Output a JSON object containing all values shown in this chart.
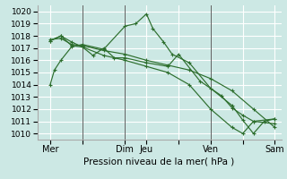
{
  "xlabel": "Pression niveau de la mer( hPa )",
  "background_color": "#cce8e4",
  "grid_color": "#ffffff",
  "line_color": "#2d6e2d",
  "ylim": [
    1009.5,
    1020.5
  ],
  "xlim": [
    -0.1,
    11.3
  ],
  "xtick_labels": [
    "Mer",
    "",
    "Dim",
    "Jeu",
    "",
    "Ven",
    "",
    "Sam"
  ],
  "xtick_positions": [
    0.5,
    2.0,
    4.0,
    5.0,
    6.5,
    8.0,
    9.5,
    11.0
  ],
  "lines": [
    {
      "x": [
        0.5,
        0.7,
        1.0,
        1.5,
        2.0,
        3.0,
        4.0,
        4.5,
        5.0,
        5.3,
        5.8,
        6.2,
        7.0,
        8.0,
        9.0,
        9.5,
        10.0,
        10.5,
        11.0
      ],
      "y": [
        1014.0,
        1015.2,
        1016.0,
        1017.1,
        1017.3,
        1016.9,
        1018.8,
        1019.0,
        1019.8,
        1018.6,
        1017.5,
        1016.5,
        1015.8,
        1013.7,
        1012.3,
        1011.1,
        1010.0,
        1011.0,
        1011.2
      ]
    },
    {
      "x": [
        0.5,
        1.0,
        1.5,
        2.0,
        2.5,
        3.0,
        3.5,
        4.0,
        5.0,
        6.0,
        6.5,
        7.5,
        8.5,
        9.0,
        9.5,
        10.0,
        11.0
      ],
      "y": [
        1017.6,
        1018.0,
        1017.2,
        1017.1,
        1016.4,
        1017.0,
        1016.2,
        1016.2,
        1015.8,
        1015.5,
        1016.5,
        1014.3,
        1013.1,
        1012.1,
        1011.5,
        1011.0,
        1010.8
      ]
    },
    {
      "x": [
        0.5,
        1.0,
        1.5,
        2.0,
        3.0,
        4.0,
        5.0,
        6.0,
        7.0,
        8.0,
        9.0,
        10.0,
        11.0
      ],
      "y": [
        1017.7,
        1017.8,
        1017.3,
        1017.2,
        1016.8,
        1016.5,
        1016.0,
        1015.6,
        1015.2,
        1014.5,
        1013.5,
        1012.0,
        1010.5
      ]
    },
    {
      "x": [
        0.5,
        1.0,
        1.5,
        2.0,
        3.0,
        4.0,
        5.0,
        6.0,
        7.0,
        8.0,
        9.0,
        9.5,
        10.0,
        11.0
      ],
      "y": [
        1017.6,
        1018.0,
        1017.5,
        1017.1,
        1016.4,
        1016.0,
        1015.5,
        1015.0,
        1014.0,
        1012.0,
        1010.5,
        1010.0,
        1011.0,
        1011.2
      ]
    }
  ],
  "vlines_x": [
    2.0,
    4.0,
    8.0
  ],
  "vline_color": "#606060",
  "ytick_fontsize": 6.5,
  "xtick_fontsize": 7,
  "xlabel_fontsize": 7.5
}
